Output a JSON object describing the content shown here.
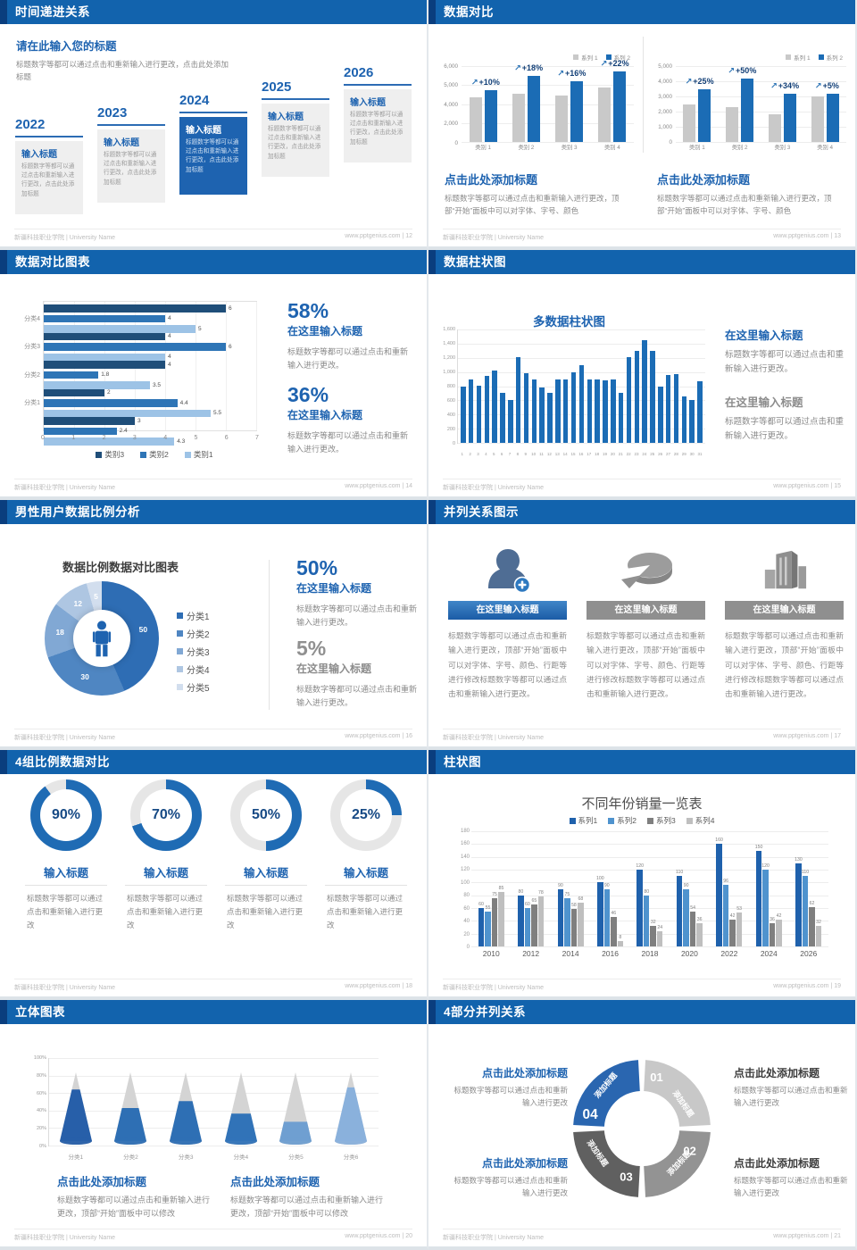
{
  "meta": {
    "footer_left": "新疆科技职业学院 | University Name"
  },
  "shared": {
    "enter_title": "输入标题",
    "here_title": "在这里输入标题",
    "click_add_title": "点击此处添加标题",
    "body_click_add": "标题数字等都可以通过点击和重新输入进行更改，点击此处添加标题",
    "body_simple": "标题数字等都可以通过点击和重新输入进行更改。",
    "body_plain": "标题数字等都可以通过点击和重新输入进行更改",
    "body_font": "标题数字等都可以通过点击和重新输入进行更改，顶部“开始”面板中可以对字体、字号、颜色",
    "body_long": "标题数字等都可以通过点击和重新输入进行更改，顶部“开始”面板中可以对字体、字号、颜色、行距等进行修改标题数字等都可以通过点击和重新输入进行更改。",
    "body_modify": "标题数字等都可以通过点击和重新输入进行更改，顶部“开始”面板中可以修改"
  },
  "slides": {
    "s12": {
      "title": "时间递进关系",
      "page_label": "www.pptgenius.com | 12",
      "heading": "请在此输入您的标题",
      "years": [
        "2022",
        "2023",
        "2024",
        "2025",
        "2026"
      ]
    },
    "s13": {
      "title": "数据对比",
      "page_label": "www.pptgenius.com | 13"
    },
    "s14": {
      "title": "数据对比图表",
      "page_label": "www.pptgenius.com | 14",
      "pct1": "58%",
      "pct2": "36%"
    },
    "s15": {
      "title": "数据柱状图",
      "page_label": "www.pptgenius.com | 15"
    },
    "s16": {
      "title": "男性用户数据比例分析",
      "page_label": "www.pptgenius.com | 16",
      "pct1": "50%",
      "pct2": "5%"
    },
    "s17": {
      "title": "并列关系图示",
      "page_label": "www.pptgenius.com | 17"
    },
    "s18": {
      "title": "4组比例数据对比",
      "page_label": "www.pptgenius.com | 18"
    },
    "s19": {
      "title": "柱状图",
      "page_label": "www.pptgenius.com | 19"
    },
    "s20": {
      "title": "立体图表",
      "page_label": "www.pptgenius.com | 20"
    },
    "s21": {
      "title": "4部分并列关系",
      "page_label": "www.pptgenius.com | 21"
    }
  },
  "chart_data": [
    {
      "id": "s13-left",
      "type": "bar",
      "categories": [
        "类别 1",
        "类别 2",
        "类别 3",
        "类别 4"
      ],
      "series": [
        {
          "name": "系列 1",
          "color": "#c9c9c9",
          "values": [
            3500,
            3800,
            3700,
            4300
          ]
        },
        {
          "name": "系列 2",
          "color": "#1b6cb5",
          "values": [
            4100,
            5200,
            4800,
            5600
          ]
        }
      ],
      "pct_labels": [
        "+10%",
        "+18%",
        "+16%",
        "+22%"
      ],
      "yticks": [
        "6,000",
        "5,000",
        "4,000",
        "2,000",
        "0"
      ],
      "ymax": 6000
    },
    {
      "id": "s13-right",
      "type": "bar",
      "categories": [
        "类别 1",
        "类别 2",
        "类别 3",
        "类别 4"
      ],
      "series": [
        {
          "name": "系列 1",
          "color": "#c9c9c9",
          "values": [
            2500,
            2300,
            1800,
            3000
          ]
        },
        {
          "name": "系列 2",
          "color": "#1b6cb5",
          "values": [
            3500,
            4200,
            3200,
            3200
          ]
        }
      ],
      "pct_labels": [
        "+25%",
        "+50%",
        "+34%",
        "+5%"
      ],
      "yticks": [
        "5,000",
        "4,000",
        "3,000",
        "2,000",
        "1,000",
        "0"
      ],
      "ymax": 5000
    },
    {
      "id": "s14",
      "type": "bar-horizontal",
      "xmax": 7,
      "xticks": [
        0,
        1,
        2,
        3,
        4,
        5,
        6,
        7
      ],
      "legend": [
        "类别3",
        "类别2",
        "类别1"
      ],
      "colors": [
        "#1f4e79",
        "#2e75b6",
        "#9dc3e6"
      ],
      "groups": [
        {
          "label": "分类4",
          "values": [
            6,
            4,
            5
          ]
        },
        {
          "label": "分类3",
          "values": [
            4,
            6,
            4
          ]
        },
        {
          "label": "分类2",
          "values": [
            4,
            1.8,
            3.5
          ]
        },
        {
          "label": "分类1",
          "values": [
            2,
            4.4,
            5.5
          ]
        },
        {
          "label": "",
          "values": [
            3,
            2.4,
            4.3
          ]
        }
      ]
    },
    {
      "id": "s15",
      "type": "bar",
      "title": "多数据柱状图",
      "color": "#1b6cb5",
      "ymax": 1600,
      "yticks": [
        "1,600",
        "1,400",
        "1,200",
        "1,000",
        "800",
        "600",
        "400",
        "200",
        "0"
      ],
      "x_labels": [
        "1",
        "2",
        "3",
        "4",
        "5",
        "6",
        "7",
        "8",
        "9",
        "10",
        "11",
        "12",
        "13",
        "14",
        "15",
        "16",
        "17",
        "18",
        "19",
        "20",
        "21",
        "22",
        "23",
        "24",
        "25",
        "26",
        "27",
        "28",
        "29",
        "30",
        "31"
      ],
      "values": [
        800,
        900,
        810,
        950,
        1020,
        700,
        600,
        1210,
        980,
        890,
        780,
        700,
        890,
        890,
        990,
        1100,
        900,
        900,
        880,
        900,
        700,
        1210,
        1300,
        1450,
        1300,
        800,
        960,
        970,
        660,
        600,
        870
      ]
    },
    {
      "id": "s16",
      "type": "pie",
      "title": "数据比例数据对比图表",
      "labels": [
        "分类1",
        "分类2",
        "分类3",
        "分类4",
        "分类5"
      ],
      "values": [
        50,
        30,
        18,
        12,
        5
      ],
      "colors": [
        "#2e6db4",
        "#4f86c2",
        "#81a8d4",
        "#aec6e2",
        "#d2deee"
      ]
    },
    {
      "id": "s18",
      "type": "donut-gauges",
      "values": [
        90,
        70,
        50,
        25
      ],
      "color": "#1f6bb4",
      "track": "#e6e6e6"
    },
    {
      "id": "s19",
      "type": "bar",
      "title": "不同年份销量一览表",
      "ymax": 180,
      "ystep": 20,
      "categories": [
        "2010",
        "2012",
        "2014",
        "2016",
        "2018",
        "2020",
        "2022",
        "2024",
        "2026"
      ],
      "series": [
        {
          "name": "系列1",
          "color": "#1f61ac",
          "values": [
            60,
            80,
            90,
            100,
            120,
            110,
            160,
            150,
            130
          ]
        },
        {
          "name": "系列2",
          "color": "#4f93ce",
          "values": [
            55,
            60,
            75,
            90,
            80,
            90,
            96,
            120,
            110
          ]
        },
        {
          "name": "系列3",
          "color": "#7f7f7f",
          "values": [
            75,
            65,
            58,
            46,
            32,
            54,
            42,
            36,
            62
          ]
        },
        {
          "name": "系列4",
          "color": "#bfbfbf",
          "values": [
            85,
            78,
            68,
            8,
            24,
            36,
            53,
            42,
            32
          ]
        }
      ]
    },
    {
      "id": "s20",
      "type": "cone",
      "yticks": [
        "100%",
        "80%",
        "60%",
        "40%",
        "20%",
        "0%"
      ],
      "categories": [
        "分类1",
        "分类2",
        "分类3",
        "分类4",
        "分类5",
        "分类6"
      ],
      "percents": [
        75,
        48,
        58,
        40,
        28,
        78
      ],
      "colors": [
        "#275fa9",
        "#2e6fb4",
        "#2e6fb4",
        "#3173b8",
        "#6f9fd1",
        "#8ab1dc"
      ]
    },
    {
      "id": "s21",
      "type": "cycle",
      "label": "添加标题",
      "segments": [
        {
          "num": "01",
          "color": "#c8c8c8"
        },
        {
          "num": "02",
          "color": "#939393"
        },
        {
          "num": "03",
          "color": "#606060"
        },
        {
          "num": "04",
          "color": "#2a66b0"
        }
      ]
    }
  ]
}
